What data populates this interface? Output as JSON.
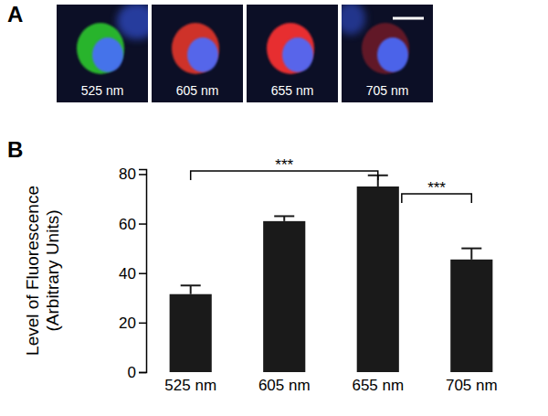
{
  "chart_data": {
    "type": "bar",
    "panel_label": "B",
    "categories": [
      "525 nm",
      "605 nm",
      "655 nm",
      "705 nm"
    ],
    "values": [
      31.5,
      61,
      75,
      45.5
    ],
    "errors": [
      3.5,
      2,
      4.5,
      4.5
    ],
    "color": "#1a1a1a",
    "ylabel": [
      "Level of Fluorescence",
      "(Arbitrary Units)"
    ],
    "ylim": [
      0,
      82
    ],
    "yticks": [
      0,
      20,
      40,
      60,
      80
    ],
    "annotations": [
      {
        "from": "525 nm",
        "to": "655 nm",
        "label": "***"
      },
      {
        "from": "655 nm",
        "to": "705 nm",
        "label": "***"
      }
    ]
  },
  "image_panel": {
    "panel_label": "A",
    "labels": [
      "525 nm",
      "605 nm",
      "655 nm",
      "705 nm"
    ]
  }
}
